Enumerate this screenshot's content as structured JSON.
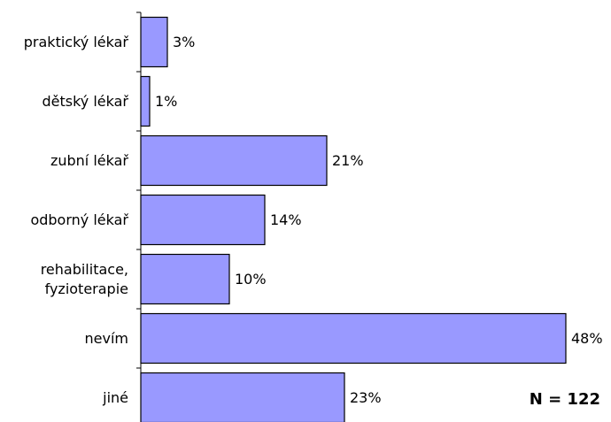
{
  "chart_data": {
    "type": "bar",
    "orientation": "horizontal",
    "categories": [
      "praktický lékař",
      "dětský lékař",
      "zubní lékař",
      "odborný lékař",
      "rehabilitace,\nfyzioterapie",
      "nevím",
      "jiné"
    ],
    "values": [
      3,
      1,
      21,
      14,
      10,
      48,
      23
    ],
    "value_labels": [
      "3%",
      "1%",
      "21%",
      "14%",
      "10%",
      "48%",
      "23%"
    ],
    "color": "#9999ff",
    "annotations": [
      "N = 122"
    ]
  }
}
